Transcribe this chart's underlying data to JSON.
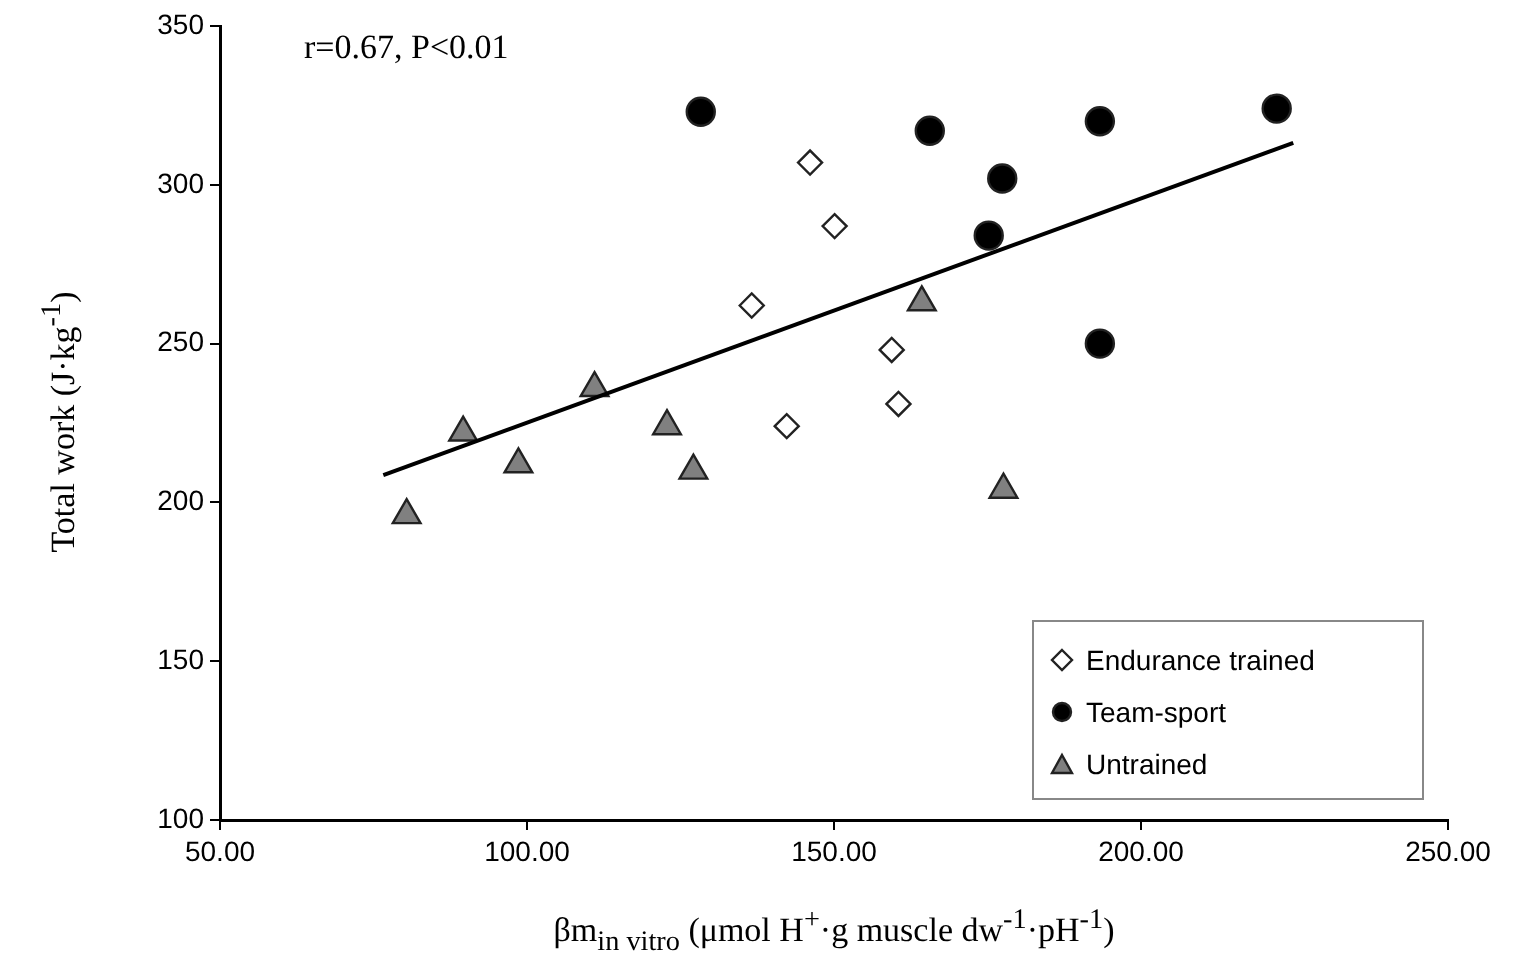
{
  "chart_data": {
    "type": "scatter",
    "xlabel": "βm$_{in vitro}$ (μmol H$^{+}$·g muscle dw$^{-1}$·pH$^{-1}$)",
    "ylabel": "Total work (J·kg$^{-1}$)",
    "annotations": [
      "r=0.67, P<0.01"
    ],
    "xlim": [
      50,
      250
    ],
    "ylim": [
      100,
      350
    ],
    "xticks": [
      {
        "value": 50,
        "label": "50.00"
      },
      {
        "value": 100,
        "label": "100.00"
      },
      {
        "value": 150,
        "label": "150.00"
      },
      {
        "value": 200,
        "label": "200.00"
      },
      {
        "value": 250,
        "label": "250.00"
      }
    ],
    "yticks": [
      100,
      150,
      200,
      250,
      300,
      350
    ],
    "grid": false,
    "legend": "bottom right",
    "series": [
      {
        "name": "Endurance trained",
        "color": "#ffffff",
        "marker": "diamond",
        "x": [
          136.6,
          142.3,
          146.1,
          150.1,
          159.4,
          160.5
        ],
        "values": [
          262,
          224,
          307,
          287,
          248,
          231
        ]
      },
      {
        "name": "Team-sport",
        "color": "#000000",
        "marker": "circle",
        "x": [
          128.3,
          165.6,
          175.2,
          177.4,
          193.3,
          193.3,
          222.1
        ],
        "values": [
          323,
          317,
          284,
          302,
          320,
          250,
          324
        ]
      },
      {
        "name": "Untrained",
        "color": "#808080",
        "marker": "triangle",
        "x": [
          80.4,
          89.6,
          98.6,
          111,
          122.8,
          127.1,
          164.3,
          177.6
        ],
        "values": [
          196,
          222,
          212,
          236,
          224,
          210,
          263,
          204
        ]
      },
      {
        "type": "line",
        "color": "#000000",
        "marker": "none",
        "x": [
          76.6,
          224.8
        ],
        "values": [
          208.6,
          313.2
        ]
      }
    ]
  }
}
